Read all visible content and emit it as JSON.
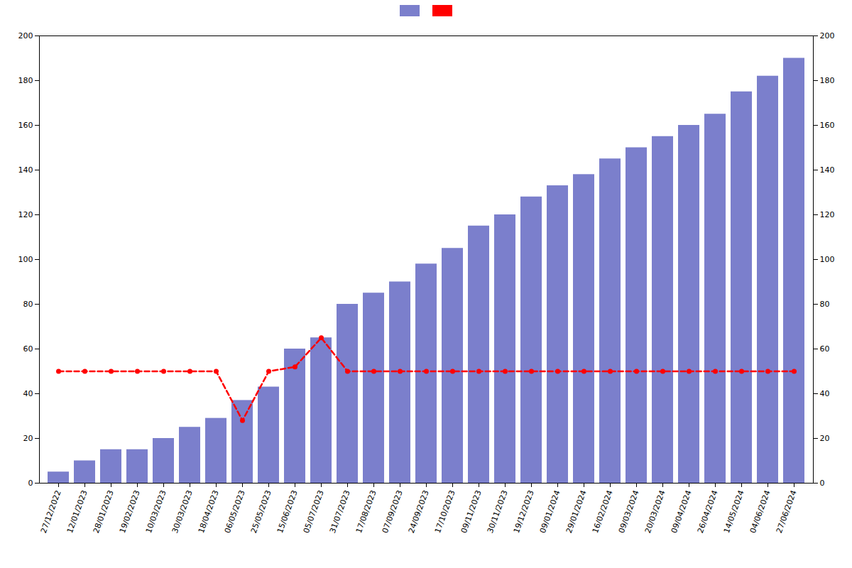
{
  "chart_data": {
    "type": "bar",
    "categories": [
      "27/12/2022",
      "12/01/2023",
      "28/01/2023",
      "19/02/2023",
      "10/03/2023",
      "30/03/2023",
      "18/04/2023",
      "06/05/2023",
      "25/05/2023",
      "15/06/2023",
      "05/07/2023",
      "31/07/2023",
      "17/08/2023",
      "07/09/2023",
      "24/09/2023",
      "17/10/2023",
      "09/11/2023",
      "30/11/2023",
      "19/12/2023",
      "09/01/2024",
      "29/01/2024",
      "16/02/2024",
      "09/03/2024",
      "20/03/2024",
      "09/04/2024",
      "26/04/2024",
      "14/05/2024",
      "04/06/2024",
      "27/06/2024"
    ],
    "series": [
      {
        "type": "bar",
        "color": "#7b7fcc",
        "values": [
          5,
          10,
          15,
          15,
          20,
          25,
          29,
          37,
          43,
          60,
          65,
          80,
          85,
          90,
          98,
          105,
          115,
          120,
          128,
          133,
          138,
          145,
          150,
          155,
          160,
          165,
          175,
          182,
          190
        ]
      },
      {
        "type": "line",
        "color": "#ff0000",
        "line_style": "dashed",
        "marker": "circle",
        "values": [
          50,
          50,
          50,
          50,
          50,
          50,
          50,
          28,
          50,
          52,
          65,
          50,
          50,
          50,
          50,
          50,
          50,
          50,
          50,
          50,
          50,
          50,
          50,
          50,
          50,
          50,
          50,
          50,
          50
        ]
      }
    ],
    "ylim": [
      0,
      200
    ],
    "yticks": [
      0,
      20,
      40,
      60,
      80,
      100,
      120,
      140,
      160,
      180,
      200
    ],
    "y2lim": [
      0,
      200
    ],
    "y2ticks": [
      0,
      20,
      40,
      60,
      80,
      100,
      120,
      140,
      160,
      180,
      200
    ],
    "grid": false,
    "legend": "top"
  }
}
